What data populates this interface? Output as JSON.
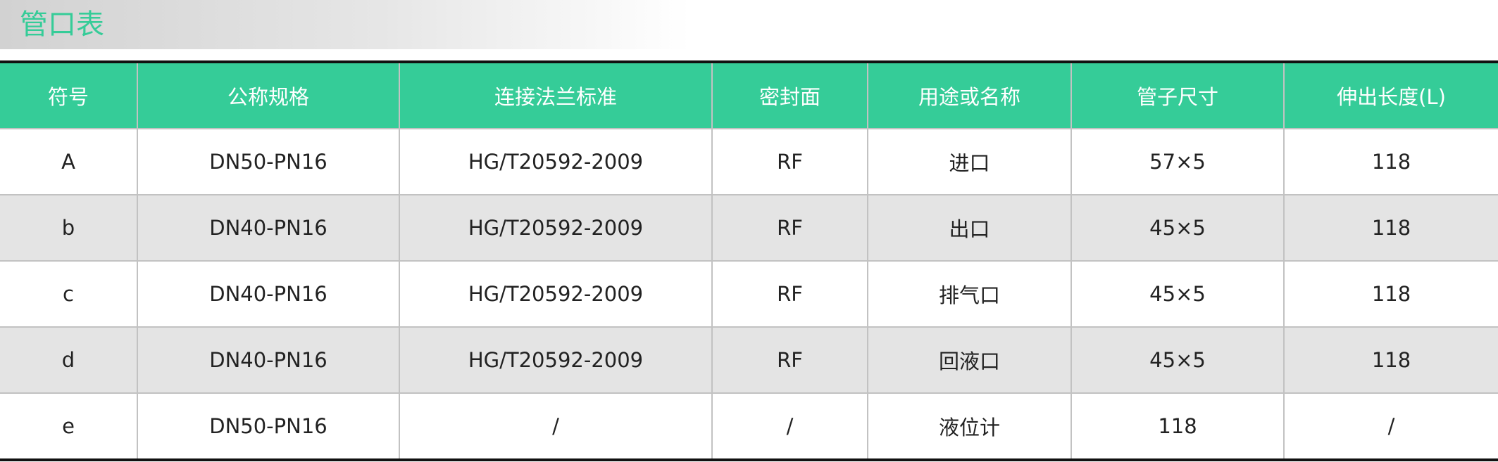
{
  "title": "管口表",
  "colors": {
    "accent": "#35cc98",
    "alt_row": "#e4e4e4"
  },
  "headers": [
    "符号",
    "公称规格",
    "连接法兰标准",
    "密封面",
    "用途或名称",
    "管子尺寸",
    "伸出长度(L)"
  ],
  "rows": [
    [
      "A",
      "DN50-PN16",
      "HG/T20592-2009",
      "RF",
      "进口",
      "57×5",
      "118"
    ],
    [
      "b",
      "DN40-PN16",
      "HG/T20592-2009",
      "RF",
      "出口",
      "45×5",
      "118"
    ],
    [
      "c",
      "DN40-PN16",
      "HG/T20592-2009",
      "RF",
      "排气口",
      "45×5",
      "118"
    ],
    [
      "d",
      "DN40-PN16",
      "HG/T20592-2009",
      "RF",
      "回液口",
      "45×5",
      "118"
    ],
    [
      "e",
      "DN50-PN16",
      "/",
      "/",
      "液位计",
      "118",
      "/"
    ]
  ]
}
